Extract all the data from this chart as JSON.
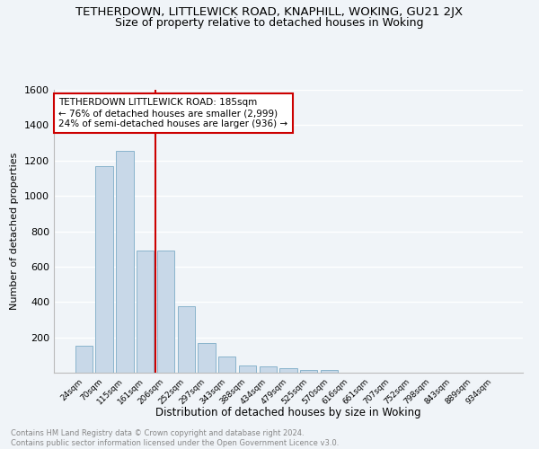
{
  "title": "TETHERDOWN, LITTLEWICK ROAD, KNAPHILL, WOKING, GU21 2JX",
  "subtitle": "Size of property relative to detached houses in Woking",
  "xlabel": "Distribution of detached houses by size in Woking",
  "ylabel": "Number of detached properties",
  "footer_line1": "Contains HM Land Registry data © Crown copyright and database right 2024.",
  "footer_line2": "Contains public sector information licensed under the Open Government Licence v3.0.",
  "categories": [
    "24sqm",
    "70sqm",
    "115sqm",
    "161sqm",
    "206sqm",
    "252sqm",
    "297sqm",
    "343sqm",
    "388sqm",
    "434sqm",
    "479sqm",
    "525sqm",
    "570sqm",
    "616sqm",
    "661sqm",
    "707sqm",
    "752sqm",
    "798sqm",
    "843sqm",
    "889sqm",
    "934sqm"
  ],
  "values": [
    150,
    1170,
    1255,
    690,
    690,
    375,
    170,
    90,
    40,
    35,
    25,
    15,
    15,
    0,
    0,
    0,
    0,
    0,
    0,
    0,
    0
  ],
  "bar_color": "#c8d8e8",
  "bar_edge_color": "#8ab4cc",
  "vline_x": 3.5,
  "vline_color": "#cc0000",
  "annotation_text": "TETHERDOWN LITTLEWICK ROAD: 185sqm\n← 76% of detached houses are smaller (2,999)\n24% of semi-detached houses are larger (936) →",
  "annotation_box_color": "#ffffff",
  "annotation_box_edge": "#cc0000",
  "ylim": [
    0,
    1600
  ],
  "yticks": [
    0,
    200,
    400,
    600,
    800,
    1000,
    1200,
    1400,
    1600
  ],
  "bg_color": "#f0f4f8",
  "plot_bg_color": "#f0f4f8",
  "grid_color": "#ffffff",
  "title_fontsize": 9.5,
  "subtitle_fontsize": 9
}
